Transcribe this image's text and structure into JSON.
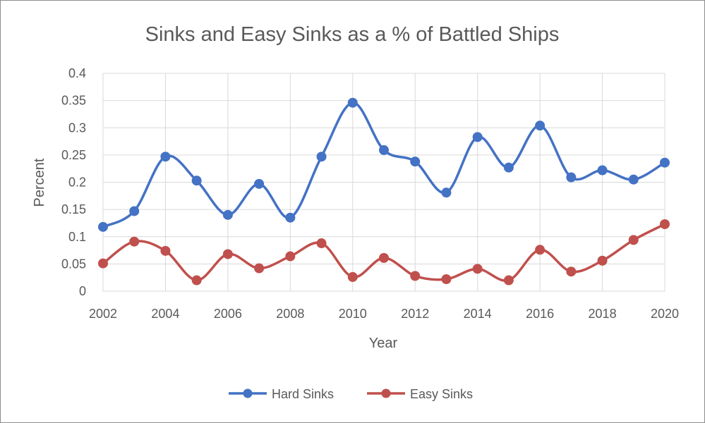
{
  "chart_data": {
    "type": "line",
    "title": "Sinks and Easy Sinks as a % of Battled Ships",
    "xlabel": "Year",
    "ylabel": "Percent",
    "xlim": [
      2002,
      2020
    ],
    "ylim": [
      0,
      0.4
    ],
    "x_ticks": [
      "2002",
      "2004",
      "2006",
      "2008",
      "2010",
      "2012",
      "2014",
      "2016",
      "2018",
      "2020"
    ],
    "y_ticks": [
      "0",
      "0.05",
      "0.1",
      "0.15",
      "0.2",
      "0.25",
      "0.3",
      "0.35",
      "0.4"
    ],
    "grid": true,
    "smooth": true,
    "legend_position": "bottom",
    "x": [
      2002,
      2003,
      2004,
      2005,
      2006,
      2007,
      2008,
      2009,
      2010,
      2011,
      2012,
      2013,
      2014,
      2015,
      2016,
      2017,
      2018,
      2019,
      2020
    ],
    "series": [
      {
        "name": "Hard Sinks",
        "color": "#4472c4",
        "values": [
          0.118,
          0.147,
          0.247,
          0.203,
          0.14,
          0.197,
          0.135,
          0.247,
          0.346,
          0.259,
          0.238,
          0.181,
          0.283,
          0.227,
          0.304,
          0.209,
          0.222,
          0.205,
          0.236
        ]
      },
      {
        "name": "Easy Sinks",
        "color": "#c0504d",
        "values": [
          0.051,
          0.091,
          0.074,
          0.02,
          0.068,
          0.042,
          0.064,
          0.088,
          0.026,
          0.061,
          0.028,
          0.022,
          0.041,
          0.02,
          0.076,
          0.036,
          0.056,
          0.094,
          0.123
        ]
      }
    ]
  }
}
